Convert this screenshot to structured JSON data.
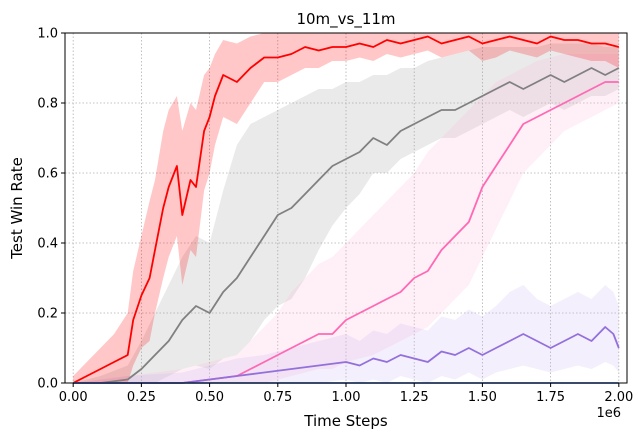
{
  "chart_data": {
    "type": "line",
    "title": "10m_vs_11m",
    "xlabel": "Time Steps",
    "ylabel": "Test Win Rate",
    "x_offset_label": "1e6",
    "xlim": [
      -0.03,
      2.03
    ],
    "ylim": [
      0,
      1.0
    ],
    "xticks": [
      0.0,
      0.25,
      0.5,
      0.75,
      1.0,
      1.25,
      1.5,
      1.75,
      2.0
    ],
    "xtick_labels": [
      "0.00",
      "0.25",
      "0.50",
      "0.75",
      "1.00",
      "1.25",
      "1.50",
      "1.75",
      "2.00"
    ],
    "yticks": [
      0.0,
      0.2,
      0.4,
      0.6,
      0.8,
      1.0
    ],
    "ytick_labels": [
      "0.0",
      "0.2",
      "0.4",
      "0.6",
      "0.8",
      "1.0"
    ],
    "grid": true,
    "legend": "none",
    "series": [
      {
        "color": "#ff0000",
        "band_color": "#ff0000",
        "x": [
          0.0,
          0.05,
          0.1,
          0.15,
          0.2,
          0.22,
          0.25,
          0.28,
          0.3,
          0.33,
          0.35,
          0.38,
          0.4,
          0.43,
          0.45,
          0.48,
          0.5,
          0.52,
          0.55,
          0.6,
          0.65,
          0.7,
          0.75,
          0.8,
          0.85,
          0.9,
          0.95,
          1.0,
          1.05,
          1.1,
          1.15,
          1.2,
          1.25,
          1.3,
          1.35,
          1.4,
          1.45,
          1.5,
          1.55,
          1.6,
          1.65,
          1.7,
          1.75,
          1.8,
          1.85,
          1.9,
          1.95,
          2.0
        ],
        "y": [
          0.0,
          0.02,
          0.04,
          0.06,
          0.08,
          0.18,
          0.25,
          0.3,
          0.38,
          0.5,
          0.56,
          0.62,
          0.48,
          0.58,
          0.56,
          0.72,
          0.76,
          0.82,
          0.88,
          0.86,
          0.9,
          0.93,
          0.93,
          0.94,
          0.96,
          0.95,
          0.96,
          0.96,
          0.97,
          0.96,
          0.98,
          0.97,
          0.98,
          0.99,
          0.97,
          0.98,
          0.99,
          0.97,
          0.98,
          0.99,
          0.98,
          0.97,
          0.99,
          0.98,
          0.98,
          0.97,
          0.97,
          0.96
        ],
        "lower": [
          0.0,
          0.0,
          0.0,
          0.0,
          0.0,
          0.05,
          0.1,
          0.12,
          0.2,
          0.3,
          0.36,
          0.42,
          0.28,
          0.38,
          0.36,
          0.55,
          0.6,
          0.68,
          0.76,
          0.74,
          0.8,
          0.86,
          0.86,
          0.88,
          0.9,
          0.9,
          0.92,
          0.92,
          0.93,
          0.92,
          0.94,
          0.93,
          0.94,
          0.95,
          0.93,
          0.94,
          0.95,
          0.92,
          0.93,
          0.95,
          0.94,
          0.93,
          0.95,
          0.94,
          0.93,
          0.92,
          0.92,
          0.9
        ],
        "upper": [
          0.02,
          0.06,
          0.1,
          0.14,
          0.2,
          0.32,
          0.42,
          0.52,
          0.58,
          0.72,
          0.78,
          0.82,
          0.72,
          0.8,
          0.78,
          0.88,
          0.9,
          0.94,
          0.98,
          0.97,
          0.99,
          1.0,
          1.0,
          1.0,
          1.0,
          1.0,
          1.0,
          1.0,
          1.0,
          1.0,
          1.0,
          1.0,
          1.0,
          1.0,
          1.0,
          1.0,
          1.0,
          1.0,
          1.0,
          1.0,
          1.0,
          1.0,
          1.0,
          1.0,
          1.0,
          1.0,
          1.0,
          1.0
        ]
      },
      {
        "color": "#808080",
        "band_color": "#a0a0a0",
        "x": [
          0.0,
          0.1,
          0.2,
          0.25,
          0.3,
          0.35,
          0.4,
          0.45,
          0.5,
          0.55,
          0.6,
          0.65,
          0.7,
          0.75,
          0.8,
          0.85,
          0.9,
          0.95,
          1.0,
          1.05,
          1.1,
          1.15,
          1.2,
          1.25,
          1.3,
          1.35,
          1.4,
          1.45,
          1.5,
          1.55,
          1.6,
          1.65,
          1.7,
          1.75,
          1.8,
          1.85,
          1.9,
          1.95,
          2.0
        ],
        "y": [
          0.0,
          0.0,
          0.01,
          0.04,
          0.08,
          0.12,
          0.18,
          0.22,
          0.2,
          0.26,
          0.3,
          0.36,
          0.42,
          0.48,
          0.5,
          0.54,
          0.58,
          0.62,
          0.64,
          0.66,
          0.7,
          0.68,
          0.72,
          0.74,
          0.76,
          0.78,
          0.78,
          0.8,
          0.82,
          0.84,
          0.86,
          0.84,
          0.86,
          0.88,
          0.86,
          0.88,
          0.9,
          0.88,
          0.9
        ],
        "lower": [
          0.0,
          0.0,
          0.0,
          0.0,
          0.0,
          0.02,
          0.04,
          0.05,
          0.04,
          0.07,
          0.08,
          0.12,
          0.18,
          0.22,
          0.24,
          0.3,
          0.38,
          0.45,
          0.5,
          0.54,
          0.6,
          0.6,
          0.64,
          0.66,
          0.68,
          0.7,
          0.7,
          0.72,
          0.74,
          0.76,
          0.78,
          0.76,
          0.78,
          0.8,
          0.78,
          0.8,
          0.82,
          0.82,
          0.84
        ],
        "upper": [
          0.0,
          0.02,
          0.05,
          0.12,
          0.2,
          0.28,
          0.36,
          0.42,
          0.4,
          0.55,
          0.68,
          0.74,
          0.76,
          0.78,
          0.8,
          0.82,
          0.84,
          0.84,
          0.86,
          0.86,
          0.88,
          0.88,
          0.9,
          0.9,
          0.92,
          0.93,
          0.94,
          0.95,
          0.96,
          0.96,
          0.96,
          0.96,
          0.96,
          0.97,
          0.97,
          0.97,
          0.97,
          0.96,
          0.96
        ]
      },
      {
        "color": "#ff69b4",
        "band_color": "#ffb6d9",
        "x": [
          0.0,
          0.2,
          0.4,
          0.5,
          0.6,
          0.65,
          0.7,
          0.75,
          0.8,
          0.85,
          0.9,
          0.95,
          1.0,
          1.05,
          1.1,
          1.15,
          1.2,
          1.25,
          1.3,
          1.35,
          1.4,
          1.45,
          1.5,
          1.55,
          1.6,
          1.65,
          1.7,
          1.75,
          1.8,
          1.85,
          1.9,
          1.95,
          2.0
        ],
        "y": [
          0.0,
          0.0,
          0.0,
          0.01,
          0.02,
          0.04,
          0.06,
          0.08,
          0.1,
          0.12,
          0.14,
          0.14,
          0.18,
          0.2,
          0.22,
          0.24,
          0.26,
          0.3,
          0.32,
          0.38,
          0.42,
          0.46,
          0.56,
          0.62,
          0.68,
          0.74,
          0.76,
          0.78,
          0.8,
          0.82,
          0.84,
          0.86,
          0.86
        ],
        "lower": [
          0.0,
          0.0,
          0.0,
          0.0,
          0.0,
          0.0,
          0.0,
          0.01,
          0.02,
          0.03,
          0.04,
          0.04,
          0.06,
          0.07,
          0.08,
          0.1,
          0.12,
          0.14,
          0.16,
          0.2,
          0.24,
          0.28,
          0.36,
          0.44,
          0.52,
          0.6,
          0.64,
          0.68,
          0.72,
          0.74,
          0.76,
          0.78,
          0.8
        ],
        "upper": [
          0.0,
          0.02,
          0.04,
          0.06,
          0.08,
          0.12,
          0.16,
          0.2,
          0.26,
          0.3,
          0.34,
          0.36,
          0.4,
          0.44,
          0.48,
          0.52,
          0.56,
          0.6,
          0.66,
          0.7,
          0.74,
          0.78,
          0.82,
          0.86,
          0.88,
          0.9,
          0.92,
          0.93,
          0.94,
          0.94,
          0.94,
          0.94,
          0.94
        ]
      },
      {
        "color": "#9370db",
        "band_color": "#c8b4f0",
        "x": [
          0.0,
          0.2,
          0.4,
          0.5,
          0.6,
          0.7,
          0.8,
          0.9,
          1.0,
          1.05,
          1.1,
          1.15,
          1.2,
          1.25,
          1.3,
          1.35,
          1.4,
          1.45,
          1.5,
          1.55,
          1.6,
          1.65,
          1.7,
          1.75,
          1.8,
          1.85,
          1.9,
          1.95,
          1.98,
          2.0
        ],
        "y": [
          0.0,
          0.0,
          0.0,
          0.01,
          0.02,
          0.03,
          0.04,
          0.05,
          0.06,
          0.05,
          0.07,
          0.06,
          0.08,
          0.07,
          0.06,
          0.09,
          0.08,
          0.1,
          0.08,
          0.1,
          0.12,
          0.14,
          0.12,
          0.1,
          0.12,
          0.14,
          0.12,
          0.16,
          0.14,
          0.1
        ],
        "lower": [
          0.0,
          0.0,
          0.0,
          0.0,
          0.0,
          0.0,
          0.0,
          0.0,
          0.01,
          0.0,
          0.01,
          0.0,
          0.02,
          0.01,
          0.0,
          0.02,
          0.01,
          0.03,
          0.01,
          0.03,
          0.04,
          0.05,
          0.04,
          0.03,
          0.04,
          0.05,
          0.04,
          0.06,
          0.05,
          0.03
        ],
        "upper": [
          0.0,
          0.02,
          0.03,
          0.05,
          0.07,
          0.08,
          0.1,
          0.12,
          0.14,
          0.12,
          0.15,
          0.14,
          0.17,
          0.16,
          0.15,
          0.19,
          0.18,
          0.21,
          0.19,
          0.22,
          0.26,
          0.28,
          0.24,
          0.22,
          0.24,
          0.26,
          0.24,
          0.28,
          0.26,
          0.22
        ]
      },
      {
        "color": "#4472c4",
        "band_color": "#4472c4",
        "x": [
          0.0,
          2.0
        ],
        "y": [
          0.0,
          0.0
        ],
        "lower": [
          0.0,
          0.0
        ],
        "upper": [
          0.0,
          0.0
        ]
      }
    ]
  }
}
